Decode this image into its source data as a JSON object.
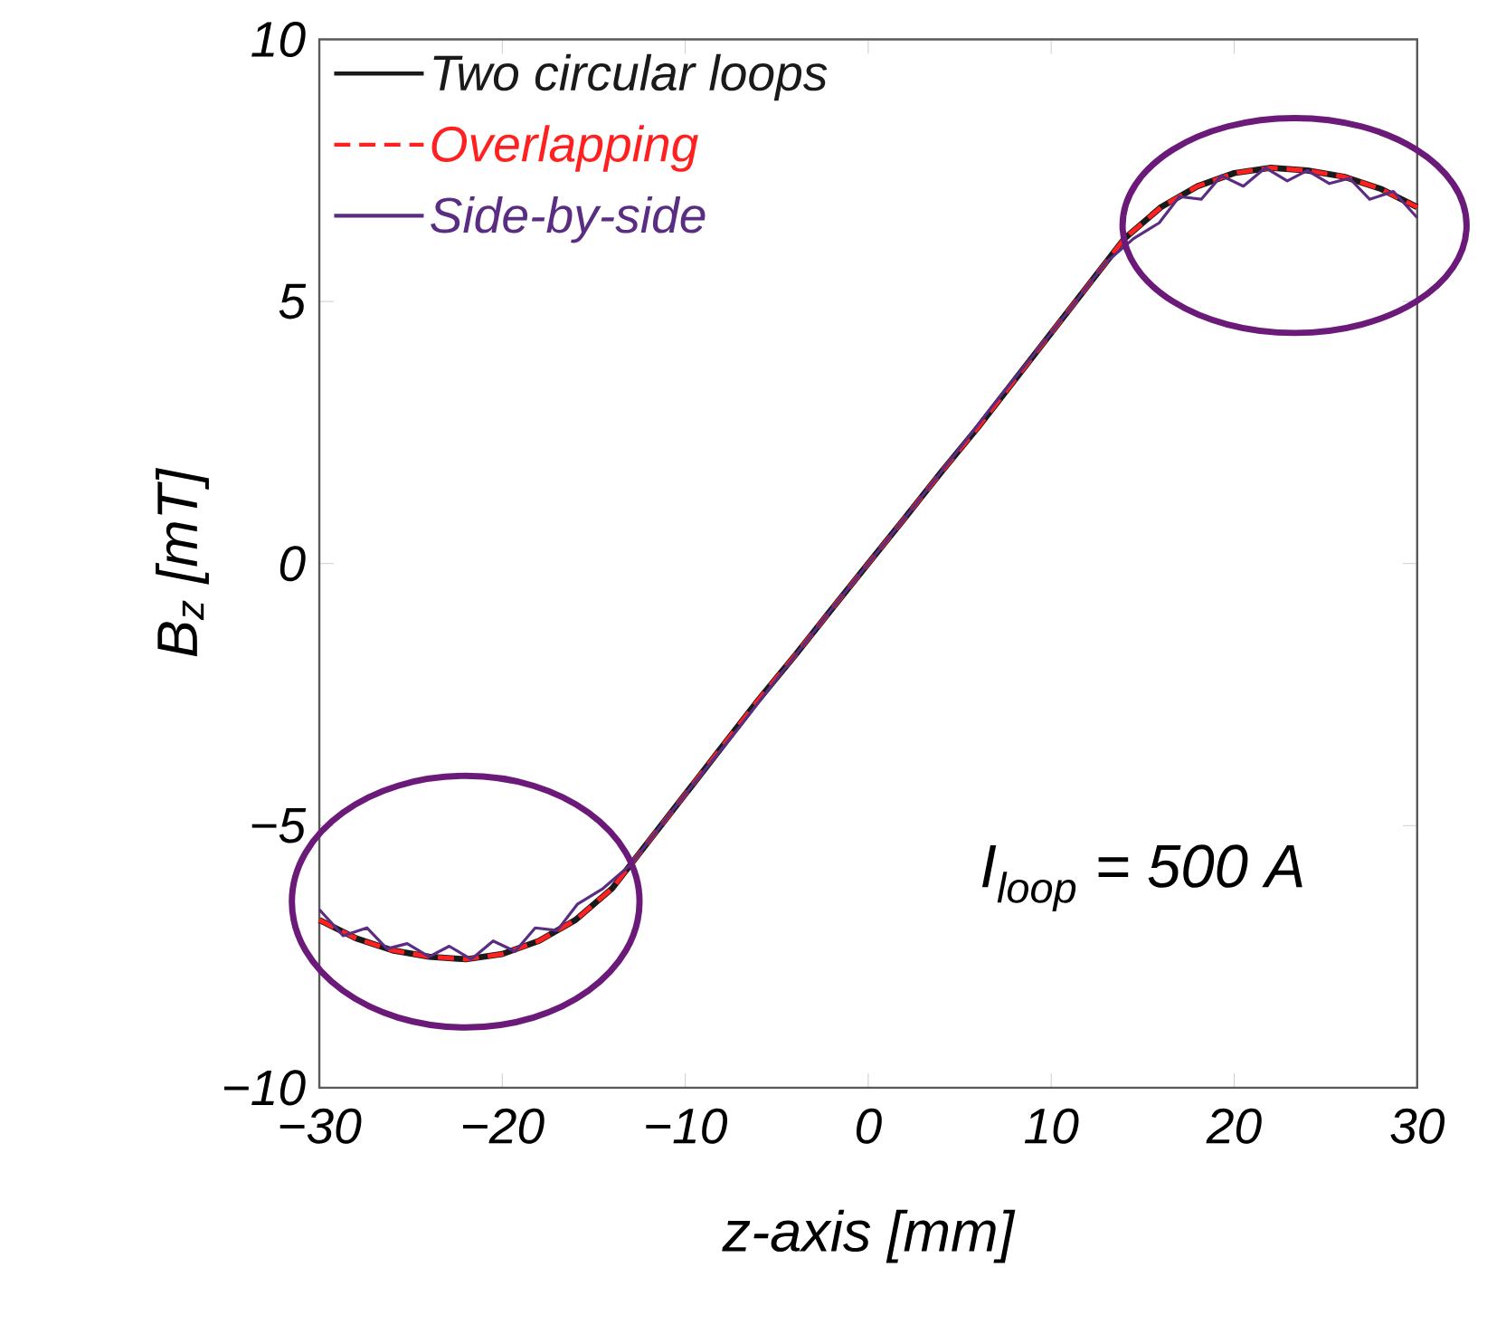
{
  "chart_data": {
    "type": "line",
    "xlabel": "z-axis [mm]",
    "ylabel": "B$_{z}$ [mT]",
    "xlim": [
      -30,
      30
    ],
    "ylim": [
      -10,
      10
    ],
    "xticks": [
      {
        "value": -30,
        "label": "−30"
      },
      {
        "value": -20,
        "label": "−20"
      },
      {
        "value": -10,
        "label": "−10"
      },
      0,
      10,
      20,
      30
    ],
    "yticks": [
      {
        "value": -10,
        "label": "−10"
      },
      {
        "value": -5,
        "label": "−5"
      },
      0,
      5,
      10
    ],
    "grid": false,
    "legend": "top left",
    "annotations": [
      "I$_{loop}$ = 500 A"
    ],
    "series": [
      {
        "name": "Two circular loops",
        "color": "#1a1a1a",
        "line_style": "solid",
        "x": [
          -30,
          -28,
          -26,
          -24,
          -22,
          -20,
          -18,
          -16,
          -14,
          -12,
          -10,
          -8,
          -6,
          -4,
          -2,
          0,
          2,
          4,
          6,
          8,
          10,
          12,
          14,
          16,
          18,
          20,
          22,
          24,
          26,
          28,
          30
        ],
        "values": [
          -6.8,
          -7.15,
          -7.38,
          -7.5,
          -7.55,
          -7.45,
          -7.2,
          -6.8,
          -6.2,
          -5.3,
          -4.4,
          -3.5,
          -2.6,
          -1.75,
          -0.87,
          0,
          0.87,
          1.75,
          2.6,
          3.5,
          4.4,
          5.3,
          6.2,
          6.8,
          7.2,
          7.45,
          7.55,
          7.5,
          7.38,
          7.15,
          6.8
        ]
      },
      {
        "name": "Overlapping",
        "color": "#ff2020",
        "line_style": "dashed",
        "x": [
          -30,
          -28,
          -26,
          -24,
          -22,
          -20,
          -18,
          -16,
          -14,
          -12,
          -10,
          -8,
          -6,
          -4,
          -2,
          0,
          2,
          4,
          6,
          8,
          10,
          12,
          14,
          16,
          18,
          20,
          22,
          24,
          26,
          28,
          30
        ],
        "values": [
          -6.8,
          -7.15,
          -7.38,
          -7.5,
          -7.55,
          -7.45,
          -7.2,
          -6.8,
          -6.2,
          -5.3,
          -4.4,
          -3.5,
          -2.6,
          -1.75,
          -0.87,
          0,
          0.87,
          1.75,
          2.6,
          3.5,
          4.4,
          5.3,
          6.2,
          6.8,
          7.2,
          7.45,
          7.55,
          7.5,
          7.38,
          7.15,
          6.8
        ]
      },
      {
        "name": "Side-by-side",
        "color": "#5a2d82",
        "line_style": "solid",
        "x": [
          -30,
          -28.7,
          -27.4,
          -26.3,
          -25.2,
          -24,
          -22.9,
          -21.7,
          -20.5,
          -19.3,
          -18.2,
          -17,
          -15.9,
          -14.5,
          -13,
          -10,
          -7,
          -5,
          -2,
          0,
          2,
          5,
          7,
          10,
          13,
          14.5,
          15.9,
          17,
          18.2,
          19.3,
          20.5,
          21.7,
          22.9,
          24,
          25.2,
          26.3,
          27.4,
          28.7,
          30
        ],
        "values": [
          -6.6,
          -7.1,
          -6.95,
          -7.35,
          -7.25,
          -7.5,
          -7.3,
          -7.55,
          -7.2,
          -7.4,
          -6.95,
          -7.0,
          -6.5,
          -6.2,
          -5.75,
          -4.4,
          -3.1,
          -2.2,
          -0.87,
          0,
          0.87,
          2.2,
          3.1,
          4.4,
          5.75,
          6.2,
          6.5,
          7.0,
          6.95,
          7.4,
          7.2,
          7.55,
          7.3,
          7.5,
          7.25,
          7.35,
          6.95,
          7.1,
          6.6
        ]
      }
    ]
  }
}
